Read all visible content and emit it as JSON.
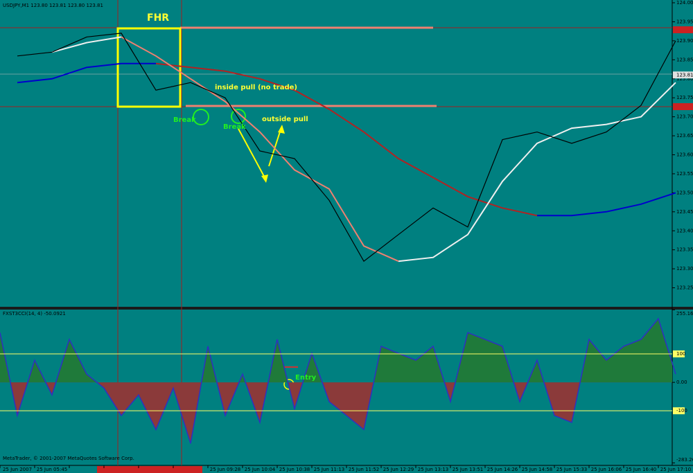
{
  "header": "USDJPY,M1  123.80 123.81 123.80 123.81",
  "footer": "MetaTrader, © 2001-2007 MetaQuotes Software Corp.",
  "chart_data": [
    {
      "type": "line",
      "categories": [
        "25 Jun 2007",
        "25 Jun 05:45",
        null,
        null,
        null,
        null,
        "25 Jun 09:28",
        "25 Jun 10:04",
        "25 Jun 10:38",
        "25 Jun 11:13",
        "25 Jun 11:52",
        "25 Jun 12:29",
        "25 Jun 13:13",
        "25 Jun 13:51",
        "25 Jun 14:26",
        "25 Jun 14:58",
        "25 Jun 15:33",
        "25 Jun 16:06",
        "25 Jun 16:40",
        "25 Jun 17:10"
      ],
      "series": [
        {
          "color": "#000000",
          "values": [
            123.86,
            123.87,
            123.91,
            123.92,
            123.77,
            123.79,
            123.75,
            123.61,
            123.59,
            123.48,
            123.32,
            123.39,
            123.46,
            123.41,
            123.64,
            123.66,
            123.63,
            123.66,
            123.73,
            123.9
          ]
        },
        {
          "color": "#0000cc",
          "values": [
            123.79,
            123.8,
            123.83,
            123.84,
            123.84,
            null,
            null,
            null,
            null,
            null,
            null,
            null,
            null,
            null,
            null,
            123.44,
            123.44,
            123.45,
            123.47,
            123.5
          ]
        },
        {
          "color": "#b22222",
          "values": [
            null,
            null,
            null,
            null,
            123.84,
            123.83,
            123.82,
            123.8,
            123.77,
            123.72,
            123.66,
            123.59,
            123.54,
            123.49,
            123.46,
            123.44,
            null,
            null,
            null,
            null
          ]
        },
        {
          "color": "#f0f0f0",
          "values": [
            null,
            123.87,
            123.895,
            123.91,
            null,
            null,
            null,
            null,
            null,
            null,
            null,
            123.32,
            123.33,
            123.39,
            123.53,
            123.63,
            123.67,
            123.68,
            123.7,
            123.79
          ]
        },
        {
          "color": "#f08070",
          "values": [
            null,
            null,
            null,
            123.91,
            123.86,
            123.8,
            123.74,
            123.66,
            123.56,
            123.51,
            123.36,
            123.32,
            null,
            null,
            null,
            null,
            null,
            null,
            null,
            null
          ]
        }
      ],
      "ylim": [
        123.2,
        124
      ],
      "yticks": [
        {
          "value": 124,
          "label": "124.00"
        },
        123.95,
        {
          "value": 123.9,
          "label": "123.90"
        },
        123.85,
        {
          "value": 123.8,
          "label": "123.80"
        },
        123.75,
        {
          "value": 123.7,
          "label": "123.70"
        },
        123.65,
        {
          "value": 123.6,
          "label": "123.60"
        },
        123.55,
        {
          "value": 123.5,
          "label": "123.50"
        },
        123.45,
        {
          "value": 123.4,
          "label": "123.40"
        },
        123.35,
        {
          "value": 123.3,
          "label": "123.30"
        },
        123.25
      ],
      "last_price": {
        "value": 123.81,
        "label": "123.81"
      },
      "annotations": [
        "FHR",
        "inside pull (no trade)",
        "Break",
        "Break",
        "outside pull"
      ]
    },
    {
      "type": "area",
      "title": "FXST3CCI(14, 4) -50.0921",
      "values": [
        175,
        -117,
        78,
        -44,
        151,
        29,
        -20,
        -117,
        -44,
        -166,
        -20,
        -215,
        127,
        -117,
        29,
        -141,
        151,
        -93,
        102,
        -68,
        -117,
        -166,
        127,
        102,
        78,
        127,
        -68,
        175,
        151,
        127,
        -68,
        78,
        -117,
        -141,
        151,
        78,
        127,
        151,
        224,
        29
      ],
      "colors": {
        "line": "#3030c0",
        "above": "#1f7a3a",
        "below": "#8b3a3a",
        "levels": "#ffff66"
      },
      "ylim": [
        -292,
        256
      ],
      "yticks": [
        255.1662,
        100,
        {
          "value": 0,
          "label": "0.00"
        },
        -100,
        -283.265
      ],
      "annotations": [
        "Entry"
      ]
    }
  ]
}
